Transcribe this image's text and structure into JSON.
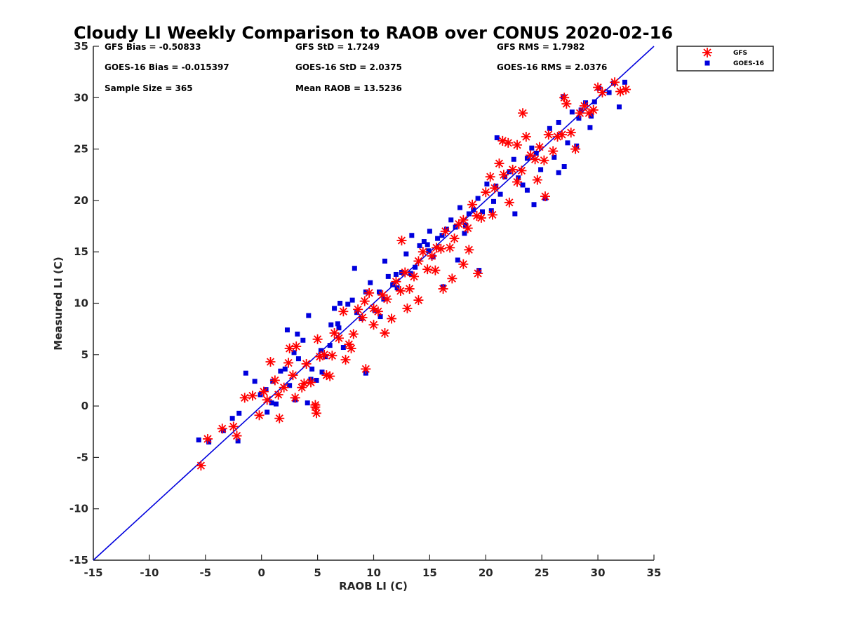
{
  "chart_data": {
    "type": "scatter",
    "title": "Cloudy LI Weekly Comparison to RAOB over CONUS 2020-02-16",
    "xlabel": "RAOB LI (C)",
    "ylabel": "Measured LI (C)",
    "xlim": [
      -15,
      35
    ],
    "ylim": [
      -15,
      35
    ],
    "xticks": [
      "-15",
      "-10",
      "-5",
      "0",
      "5",
      "10",
      "15",
      "20",
      "25",
      "30",
      "35"
    ],
    "yticks": [
      "-15",
      "-10",
      "-5",
      "0",
      "5",
      "10",
      "15",
      "20",
      "25",
      "30",
      "35"
    ],
    "grid": false,
    "legend_position": "top-right, outside plot",
    "colors": {
      "gfs": "#ff0000",
      "goes16": "#0000dd",
      "reference_line": "#0000dd"
    },
    "stats": {
      "gfs_bias": "GFS Bias = -0.50833",
      "gfs_std": "GFS StD = 1.7249",
      "gfs_rms": "GFS RMS = 1.7982",
      "goes_bias": "GOES-16 Bias = -0.015397",
      "goes_std": "GOES-16 StD = 2.0375",
      "goes_rms": "GOES-16 RMS = 2.0376",
      "sample_size": "Sample Size = 365",
      "mean_raob": "Mean RAOB = 13.5236"
    },
    "reference_line": {
      "x": [
        -15,
        35
      ],
      "y": [
        -15,
        35
      ]
    },
    "series": [
      {
        "name": "GFS",
        "marker": "asterisk",
        "x": [
          -5.4,
          -4.8,
          -3.5,
          -2.5,
          -2.2,
          -1.5,
          -0.8,
          -0.2,
          0.5,
          0.8,
          1.2,
          1.6,
          2.0,
          2.4,
          2.8,
          3.1,
          3.6,
          4.0,
          4.4,
          4.8,
          5.0,
          5.2,
          5.6,
          6.1,
          6.5,
          6.9,
          7.3,
          7.8,
          8.2,
          8.6,
          9.0,
          9.2,
          9.6,
          10.0,
          10.4,
          10.8,
          11.2,
          11.6,
          12.0,
          12.4,
          12.8,
          13.2,
          13.6,
          14.0,
          14.4,
          14.8,
          15.2,
          15.6,
          16.0,
          16.4,
          16.8,
          17.2,
          17.6,
          18.0,
          18.4,
          18.8,
          19.2,
          19.6,
          20.0,
          20.4,
          20.8,
          21.2,
          21.6,
          22.0,
          22.4,
          22.8,
          23.2,
          23.6,
          24.0,
          24.4,
          24.8,
          25.2,
          25.6,
          26.0,
          26.4,
          26.8,
          27.2,
          27.6,
          28.0,
          28.4,
          28.8,
          29.2,
          29.6,
          30.0,
          30.4,
          31.5,
          32.0,
          32.5,
          1.5,
          3.0,
          4.9,
          0.2,
          2.5,
          7.5,
          10.0,
          12.5,
          15.5,
          17.0,
          19.3,
          21.5,
          23.3,
          25.3,
          27.0,
          3.8,
          5.8,
          8.0,
          11.0,
          14.0,
          16.2,
          18.5,
          20.6,
          22.8,
          24.6,
          9.3,
          4.8,
          6.3,
          13.0,
          18.0,
          22.1
        ],
        "y": [
          -5.8,
          -3.2,
          -2.2,
          -2.0,
          -2.9,
          0.8,
          1.0,
          -0.9,
          0.6,
          4.3,
          2.5,
          -1.2,
          1.8,
          4.2,
          3.0,
          5.8,
          1.8,
          4.1,
          2.3,
          -0.1,
          6.5,
          4.8,
          5.0,
          2.9,
          7.1,
          6.6,
          9.2,
          6.0,
          7.0,
          9.4,
          8.6,
          10.2,
          11.0,
          9.5,
          9.2,
          10.8,
          10.4,
          8.5,
          12.1,
          11.2,
          13.0,
          11.4,
          12.6,
          14.1,
          15.0,
          13.3,
          14.6,
          15.4,
          15.3,
          17.0,
          15.4,
          16.3,
          17.7,
          18.1,
          17.3,
          19.6,
          18.5,
          18.3,
          20.8,
          22.3,
          21.2,
          23.6,
          22.5,
          25.6,
          23.0,
          25.4,
          22.9,
          26.2,
          24.4,
          24.0,
          25.2,
          23.9,
          26.4,
          24.8,
          26.2,
          26.4,
          29.4,
          26.6,
          25.0,
          28.5,
          29.2,
          28.5,
          28.8,
          31.0,
          30.5,
          31.5,
          30.6,
          30.8,
          1.1,
          0.8,
          -0.7,
          1.4,
          5.6,
          4.5,
          7.9,
          16.1,
          13.2,
          12.4,
          12.9,
          25.8,
          28.5,
          20.4,
          30.0,
          2.2,
          3.0,
          5.6,
          7.1,
          10.3,
          11.4,
          15.2,
          18.6,
          21.8,
          22.0,
          3.6,
          0.1,
          4.9,
          9.5,
          13.8,
          19.8
        ]
      },
      {
        "name": "GOES-16",
        "marker": "square",
        "x": [
          -5.6,
          -4.7,
          -3.4,
          -2.6,
          -2.1,
          -2.0,
          -1.4,
          -0.6,
          -0.1,
          0.4,
          0.9,
          1.3,
          1.7,
          2.1,
          2.5,
          2.9,
          3.3,
          3.7,
          4.1,
          4.5,
          4.9,
          5.3,
          5.7,
          6.1,
          6.5,
          6.9,
          7.3,
          7.7,
          8.1,
          8.5,
          8.9,
          9.3,
          9.7,
          10.1,
          10.5,
          10.9,
          11.3,
          11.7,
          12.1,
          12.5,
          12.9,
          13.3,
          13.7,
          14.1,
          14.5,
          14.9,
          15.3,
          15.7,
          16.1,
          16.5,
          16.9,
          17.3,
          17.7,
          18.1,
          18.5,
          18.9,
          19.3,
          19.7,
          20.1,
          20.5,
          20.9,
          21.3,
          21.7,
          22.1,
          22.5,
          22.9,
          23.3,
          23.7,
          24.1,
          24.5,
          24.9,
          25.3,
          25.7,
          26.1,
          26.5,
          26.9,
          27.3,
          27.7,
          28.1,
          28.5,
          28.9,
          29.3,
          29.7,
          30.1,
          31.4,
          31.9,
          32.4,
          2.3,
          3.2,
          4.2,
          5.4,
          6.2,
          7.0,
          8.3,
          9.3,
          11.0,
          13.4,
          14.8,
          16.2,
          17.5,
          19.4,
          21.0,
          22.6,
          24.3,
          26.5,
          28.3,
          3.0,
          4.4,
          1.0,
          0.5,
          6.8,
          10.6,
          12.0,
          15.0,
          18.2,
          20.7,
          23.7,
          27.0,
          29.4,
          31.0
        ],
        "y": [
          -3.3,
          -3.5,
          -2.4,
          -1.2,
          -3.4,
          -0.7,
          3.2,
          2.4,
          1.1,
          1.6,
          0.3,
          0.2,
          3.4,
          3.6,
          2.0,
          5.2,
          4.6,
          6.4,
          0.3,
          3.6,
          2.5,
          5.4,
          4.8,
          5.9,
          9.5,
          7.6,
          5.7,
          9.9,
          10.3,
          9.1,
          8.5,
          11.1,
          12.0,
          9.3,
          11.1,
          10.4,
          12.6,
          11.8,
          11.5,
          13.0,
          14.8,
          12.9,
          13.5,
          15.6,
          16.0,
          15.1,
          14.5,
          16.3,
          16.6,
          17.2,
          18.1,
          17.4,
          19.3,
          16.8,
          18.7,
          19.1,
          20.2,
          18.9,
          21.6,
          19.0,
          21.4,
          20.6,
          22.3,
          22.8,
          24.0,
          22.2,
          21.5,
          24.1,
          25.1,
          24.6,
          23.0,
          20.2,
          27.0,
          24.2,
          27.6,
          30.1,
          25.6,
          28.6,
          25.3,
          28.8,
          29.5,
          27.1,
          29.6,
          30.9,
          31.4,
          29.1,
          31.5,
          7.4,
          7.0,
          8.8,
          3.3,
          7.9,
          10.0,
          13.4,
          3.2,
          14.1,
          16.6,
          15.7,
          11.6,
          14.2,
          13.2,
          26.1,
          18.7,
          19.6,
          22.7,
          28.0,
          0.6,
          2.6,
          2.4,
          -0.6,
          8.0,
          8.7,
          12.8,
          17.0,
          17.6,
          19.9,
          21.0,
          23.3,
          28.2,
          30.5
        ]
      }
    ],
    "legend": [
      {
        "label": "GFS",
        "marker": "asterisk"
      },
      {
        "label": "GOES-16",
        "marker": "square"
      }
    ]
  }
}
